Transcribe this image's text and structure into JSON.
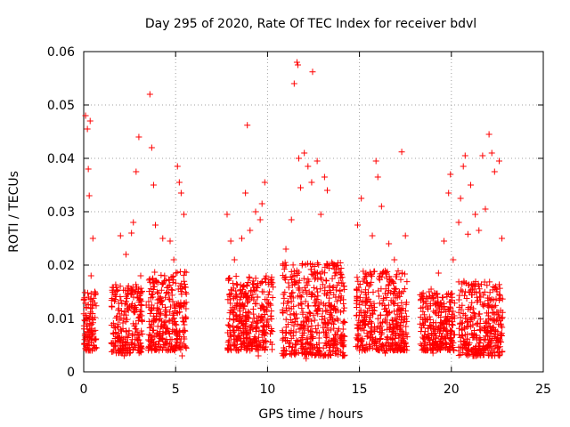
{
  "chart_data": {
    "type": "scatter",
    "title": "Day 295 of 2020, Rate Of TEC Index for receiver bdvl",
    "xlabel": "GPS time / hours",
    "ylabel": "ROTI / TECUs",
    "xlim": [
      0,
      25
    ],
    "ylim": [
      0,
      0.06
    ],
    "x_ticks": [
      "0",
      "5",
      "10",
      "15",
      "20",
      "25"
    ],
    "y_ticks": [
      "0",
      "0.01",
      "0.02",
      "0.03",
      "0.04",
      "0.05",
      "0.06"
    ],
    "grid": true,
    "marker": "+",
    "colors": {
      "points": "#ff0000",
      "grid": "#a0a0a0",
      "axis": "#000000"
    },
    "series": [
      {
        "points": [
          [
            0.1,
            0.048
          ],
          [
            0.2,
            0.0455
          ],
          [
            0.25,
            0.038
          ],
          [
            0.3,
            0.033
          ],
          [
            0.35,
            0.047
          ],
          [
            0.4,
            0.018
          ],
          [
            0.5,
            0.025
          ],
          [
            0.6,
            0.015
          ],
          [
            0.2,
            0.008
          ],
          [
            0.4,
            0.006
          ],
          [
            2.0,
            0.0255
          ],
          [
            2.3,
            0.022
          ],
          [
            2.6,
            0.026
          ],
          [
            2.7,
            0.028
          ],
          [
            2.85,
            0.0375
          ],
          [
            3.0,
            0.044
          ],
          [
            3.1,
            0.018
          ],
          [
            3.4,
            0.0125
          ],
          [
            2.2,
            0.003
          ],
          [
            2.5,
            0.0035
          ],
          [
            3.6,
            0.052
          ],
          [
            3.7,
            0.042
          ],
          [
            3.8,
            0.035
          ],
          [
            3.9,
            0.0275
          ],
          [
            4.3,
            0.025
          ],
          [
            4.6,
            0.016
          ],
          [
            4.7,
            0.0245
          ],
          [
            4.9,
            0.021
          ],
          [
            5.1,
            0.0385
          ],
          [
            5.2,
            0.0355
          ],
          [
            5.3,
            0.0335
          ],
          [
            5.45,
            0.0295
          ],
          [
            4.4,
            0.018
          ],
          [
            5.35,
            0.003
          ],
          [
            3.7,
            0.004
          ],
          [
            7.8,
            0.0295
          ],
          [
            8.0,
            0.0245
          ],
          [
            8.2,
            0.021
          ],
          [
            8.6,
            0.025
          ],
          [
            8.8,
            0.0335
          ],
          [
            8.9,
            0.0462
          ],
          [
            9.05,
            0.0265
          ],
          [
            9.35,
            0.03
          ],
          [
            9.6,
            0.0285
          ],
          [
            9.7,
            0.0315
          ],
          [
            9.85,
            0.0355
          ],
          [
            10.1,
            0.015
          ],
          [
            8.4,
            0.004
          ],
          [
            9.5,
            0.003
          ],
          [
            8.3,
            0.006
          ],
          [
            11.0,
            0.023
          ],
          [
            11.3,
            0.0285
          ],
          [
            11.45,
            0.054
          ],
          [
            11.6,
            0.058
          ],
          [
            11.65,
            0.0575
          ],
          [
            11.7,
            0.04
          ],
          [
            11.8,
            0.0345
          ],
          [
            12.0,
            0.041
          ],
          [
            12.2,
            0.0385
          ],
          [
            12.4,
            0.0355
          ],
          [
            12.45,
            0.0562
          ],
          [
            12.7,
            0.0395
          ],
          [
            12.9,
            0.0295
          ],
          [
            13.1,
            0.0365
          ],
          [
            13.25,
            0.034
          ],
          [
            13.5,
            0.0205
          ],
          [
            13.7,
            0.0185
          ],
          [
            14.15,
            0.016
          ],
          [
            12.1,
            0.0025
          ],
          [
            13.3,
            0.003
          ],
          [
            14.9,
            0.0275
          ],
          [
            15.1,
            0.0325
          ],
          [
            15.35,
            0.0185
          ],
          [
            15.7,
            0.0255
          ],
          [
            15.9,
            0.0395
          ],
          [
            16.0,
            0.0365
          ],
          [
            16.2,
            0.031
          ],
          [
            16.6,
            0.024
          ],
          [
            16.9,
            0.021
          ],
          [
            17.3,
            0.0412
          ],
          [
            17.5,
            0.0255
          ],
          [
            16.4,
            0.0035
          ],
          [
            17.1,
            0.005
          ],
          [
            15.0,
            0.004
          ],
          [
            16.8,
            0.006
          ],
          [
            18.4,
            0.0145
          ],
          [
            18.9,
            0.0155
          ],
          [
            19.3,
            0.0185
          ],
          [
            19.6,
            0.0245
          ],
          [
            19.85,
            0.0335
          ],
          [
            19.95,
            0.037
          ],
          [
            20.1,
            0.021
          ],
          [
            19.0,
            0.0035
          ],
          [
            18.6,
            0.0045
          ],
          [
            19.7,
            0.0055
          ],
          [
            20.4,
            0.028
          ],
          [
            20.5,
            0.0325
          ],
          [
            20.65,
            0.0385
          ],
          [
            20.75,
            0.0405
          ],
          [
            20.9,
            0.0258
          ],
          [
            21.05,
            0.035
          ],
          [
            21.3,
            0.0295
          ],
          [
            21.5,
            0.0265
          ],
          [
            21.7,
            0.0405
          ],
          [
            21.85,
            0.0305
          ],
          [
            22.05,
            0.0445
          ],
          [
            22.2,
            0.041
          ],
          [
            22.35,
            0.0375
          ],
          [
            22.6,
            0.0395
          ],
          [
            22.75,
            0.025
          ],
          [
            21.2,
            0.003
          ],
          [
            22.0,
            0.0035
          ],
          [
            22.5,
            0.0045
          ],
          [
            20.8,
            0.005
          ],
          [
            21.6,
            0.006
          ]
        ],
        "dense_bands": [
          {
            "x_range": [
              0.0,
              0.7
            ],
            "y_range": [
              0.004,
              0.0155
            ]
          },
          {
            "x_range": [
              1.5,
              3.2
            ],
            "y_range": [
              0.0035,
              0.0165
            ]
          },
          {
            "x_range": [
              3.5,
              5.6
            ],
            "y_range": [
              0.004,
              0.019
            ]
          },
          {
            "x_range": [
              7.8,
              10.3
            ],
            "y_range": [
              0.004,
              0.018
            ]
          },
          {
            "x_range": [
              10.8,
              14.2
            ],
            "y_range": [
              0.003,
              0.0205
            ]
          },
          {
            "x_range": [
              14.8,
              17.6
            ],
            "y_range": [
              0.004,
              0.019
            ]
          },
          {
            "x_range": [
              18.3,
              20.2
            ],
            "y_range": [
              0.004,
              0.015
            ]
          },
          {
            "x_range": [
              20.4,
              22.8
            ],
            "y_range": [
              0.003,
              0.017
            ]
          }
        ]
      }
    ]
  }
}
